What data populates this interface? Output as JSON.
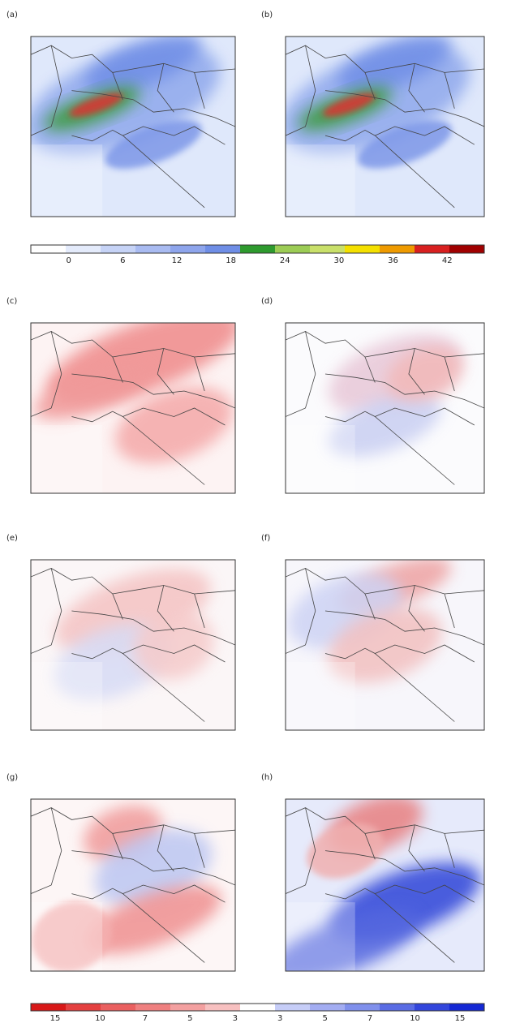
{
  "panels": [
    {
      "label": "(a)"
    },
    {
      "label": "(b)"
    },
    {
      "label": "(c)"
    },
    {
      "label": "(d)"
    },
    {
      "label": "(e)"
    },
    {
      "label": "(f)"
    },
    {
      "label": "(g)"
    },
    {
      "label": "(h)"
    }
  ],
  "colorbars": [
    {
      "ticks": [
        "0",
        "6",
        "12",
        "18",
        "24",
        "30",
        "36",
        "42"
      ]
    },
    {
      "ticks": [
        "15",
        "10",
        "7",
        "5",
        "3",
        "3",
        "5",
        "7",
        "10",
        "15"
      ]
    }
  ]
}
